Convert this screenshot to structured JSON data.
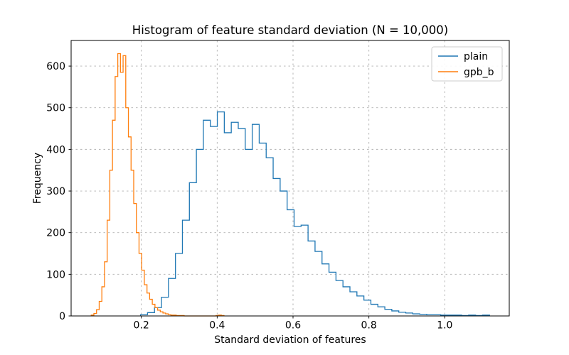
{
  "figure": {
    "title": "Histogram of feature standard deviation (N = 10,000)",
    "xlabel": "Standard deviation of features",
    "ylabel": "Frequency",
    "legend": {
      "position": "upper right",
      "entries": [
        {
          "label": "plain",
          "color": "#1f77b4"
        },
        {
          "label": "gpb_b",
          "color": "#ff7f0e"
        }
      ]
    },
    "colors": {
      "plain": "#1f77b4",
      "gpb_b": "#ff7f0e",
      "grid": "#b0b0b0",
      "spine": "#000000",
      "background": "#ffffff",
      "legend_border": "#cccccc"
    }
  },
  "chart_data": {
    "type": "bar",
    "subtype": "step-histogram",
    "title": "Histogram of feature standard deviation (N = 10,000)",
    "xlabel": "Standard deviation of features",
    "ylabel": "Frequency",
    "xlim": [
      0.015,
      1.17
    ],
    "ylim": [
      0,
      661.5
    ],
    "xtick_values": [
      0.2,
      0.4,
      0.6,
      0.8,
      1.0
    ],
    "xtick_labels": [
      "0.2",
      "0.4",
      "0.6",
      "0.8",
      "1.0"
    ],
    "ytick_values": [
      0,
      100,
      200,
      300,
      400,
      500,
      600
    ],
    "ytick_labels": [
      "0",
      "100",
      "200",
      "300",
      "400",
      "500",
      "600"
    ],
    "grid": true,
    "grid_style": "dashed",
    "legend_position": "upper right",
    "series": [
      {
        "name": "plain",
        "color": "#1f77b4",
        "bin_start": 0.198,
        "bin_width": 0.0184,
        "counts": [
          3,
          8,
          20,
          45,
          90,
          150,
          230,
          320,
          400,
          470,
          455,
          490,
          440,
          465,
          450,
          400,
          460,
          415,
          380,
          330,
          300,
          255,
          215,
          218,
          180,
          155,
          125,
          105,
          85,
          70,
          58,
          48,
          38,
          28,
          22,
          16,
          12,
          9,
          7,
          5,
          4,
          3,
          3,
          2,
          2,
          2,
          1,
          2,
          1,
          2
        ]
      },
      {
        "name": "gpb_b",
        "color": "#ff7f0e",
        "bin_start": 0.068,
        "bin_width": 0.007,
        "counts": [
          2,
          6,
          15,
          35,
          70,
          130,
          230,
          350,
          470,
          575,
          630,
          585,
          625,
          500,
          430,
          350,
          270,
          200,
          150,
          110,
          75,
          55,
          40,
          28,
          20,
          14,
          10,
          7,
          5,
          3,
          2,
          2,
          1,
          1,
          1,
          0,
          0,
          0,
          0,
          0,
          0,
          0,
          0,
          0,
          0,
          0,
          0,
          1,
          2,
          1
        ]
      }
    ]
  }
}
